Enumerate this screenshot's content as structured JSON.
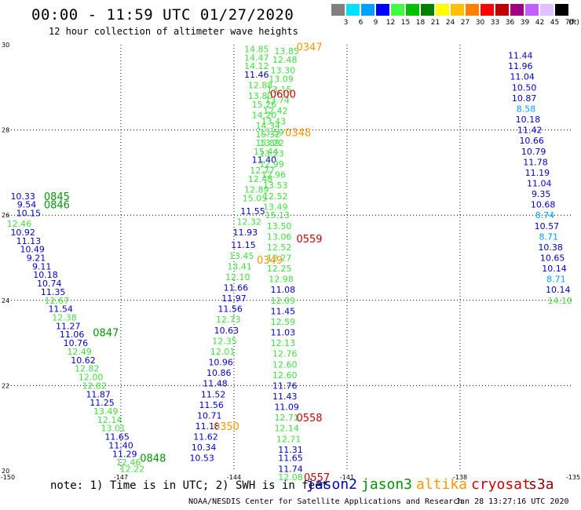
{
  "title": "00:00 - 11:59 UTC 01/27/2020",
  "subtitle": "12 hour collection of altimeter wave heights",
  "color_scale": {
    "unit_label": "(ft)",
    "labels": [
      "3",
      "6",
      "9",
      "12",
      "15",
      "18",
      "21",
      "24",
      "27",
      "30",
      "33",
      "36",
      "39",
      "42",
      "45",
      "70"
    ],
    "colors": [
      "#808080",
      "#00e0ff",
      "#00a0ff",
      "#0000ff",
      "#40ff40",
      "#00c000",
      "#008000",
      "#ffff00",
      "#ffc000",
      "#ff8000",
      "#ff0000",
      "#c00000",
      "#a00080",
      "#c060ff",
      "#e0c0ff",
      "#000000"
    ]
  },
  "note": "note: 1) Time is in UTC; 2) SWH is in feet",
  "legend": [
    {
      "name": "jason2",
      "color": "#0000c8"
    },
    {
      "name": "jason3",
      "color": "#009600"
    },
    {
      "name": "altika",
      "color": "#ff9600"
    },
    {
      "name": "cryosat",
      "color": "#c80000"
    },
    {
      "name": "s3a",
      "color": "#960000"
    }
  ],
  "credit": "NOAA/NESDIS Center for Satellite Applications and Research",
  "timestamp": "Jan 28 13:27:16 UTC 2020",
  "chart_data": {
    "type": "scatter",
    "title": "12 hour collection of altimeter wave heights",
    "xlim": [
      -150,
      -135
    ],
    "ylim": [
      20,
      30
    ],
    "xticks": [
      -150,
      -147,
      -144,
      -141,
      -138,
      -135
    ],
    "yticks": [
      20,
      22,
      24,
      26,
      28,
      30
    ],
    "grid": true,
    "color_by": "wave height (ft)",
    "series": [
      {
        "name": "jason3",
        "track": "w",
        "points": [
          {
            "x": -149.7,
            "y": 25.8,
            "v": "12.46"
          },
          {
            "x": -149.6,
            "y": 25.6,
            "v": "10.92"
          },
          {
            "x": -149.45,
            "y": 25.4,
            "v": "11.13"
          },
          {
            "x": -149.35,
            "y": 25.2,
            "v": "10.49"
          },
          {
            "x": -149.25,
            "y": 25.0,
            "v": "9.21"
          },
          {
            "x": -149.1,
            "y": 24.8,
            "v": "9.11"
          },
          {
            "x": -149.0,
            "y": 24.6,
            "v": "10.18"
          },
          {
            "x": -148.9,
            "y": 24.4,
            "v": "10.74"
          },
          {
            "x": -148.8,
            "y": 24.2,
            "v": "11.35"
          },
          {
            "x": -148.7,
            "y": 24.0,
            "v": "12.67"
          },
          {
            "x": -148.6,
            "y": 23.8,
            "v": "11.54"
          },
          {
            "x": -148.5,
            "y": 23.6,
            "v": "12.38"
          },
          {
            "x": -148.4,
            "y": 23.4,
            "v": "11.27"
          },
          {
            "x": -148.3,
            "y": 23.2,
            "v": "11.06"
          },
          {
            "x": -148.2,
            "y": 23.0,
            "v": "10.76"
          },
          {
            "x": -148.1,
            "y": 22.8,
            "v": "12.49"
          },
          {
            "x": -148.0,
            "y": 22.6,
            "v": "10.62"
          },
          {
            "x": -147.9,
            "y": 22.4,
            "v": "12.82"
          },
          {
            "x": -147.8,
            "y": 22.2,
            "v": "12.00"
          },
          {
            "x": -147.7,
            "y": 22.0,
            "v": "12.82"
          },
          {
            "x": -147.6,
            "y": 21.8,
            "v": "11.87"
          },
          {
            "x": -147.5,
            "y": 21.6,
            "v": "11.25"
          },
          {
            "x": -147.4,
            "y": 21.4,
            "v": "13.49"
          },
          {
            "x": -147.3,
            "y": 21.2,
            "v": "12.14"
          },
          {
            "x": -147.2,
            "y": 21.0,
            "v": "13.01"
          },
          {
            "x": -147.1,
            "y": 20.8,
            "v": "11.65"
          },
          {
            "x": -147.0,
            "y": 20.6,
            "v": "11.40"
          },
          {
            "x": -146.9,
            "y": 20.4,
            "v": "11.29"
          },
          {
            "x": -146.8,
            "y": 20.2,
            "v": "12.46"
          },
          {
            "x": -146.7,
            "y": 20.05,
            "v": "12.22"
          }
        ]
      },
      {
        "name": "jason2",
        "track": "c",
        "points": [
          {
            "x": -143.4,
            "y": 29.9,
            "v": "14.85"
          },
          {
            "x": -143.4,
            "y": 29.7,
            "v": "14.47"
          },
          {
            "x": -143.4,
            "y": 29.5,
            "v": "14.12"
          },
          {
            "x": -143.4,
            "y": 29.3,
            "v": "11.46"
          },
          {
            "x": -143.3,
            "y": 29.05,
            "v": "12.88"
          },
          {
            "x": -143.3,
            "y": 28.8,
            "v": "13.80"
          },
          {
            "x": -143.2,
            "y": 28.6,
            "v": "15.26"
          },
          {
            "x": -143.2,
            "y": 28.35,
            "v": "14.20"
          },
          {
            "x": -143.1,
            "y": 28.1,
            "v": "14.34"
          },
          {
            "x": -143.1,
            "y": 27.9,
            "v": "15.32"
          },
          {
            "x": -143.1,
            "y": 27.7,
            "v": "15.89"
          },
          {
            "x": -143.15,
            "y": 27.5,
            "v": "15.44"
          },
          {
            "x": -143.2,
            "y": 27.3,
            "v": "11.40"
          },
          {
            "x": -143.25,
            "y": 27.05,
            "v": "12.77"
          },
          {
            "x": -143.3,
            "y": 26.85,
            "v": "12.48"
          },
          {
            "x": -143.4,
            "y": 26.6,
            "v": "12.89"
          },
          {
            "x": -143.45,
            "y": 26.4,
            "v": "15.05"
          },
          {
            "x": -143.5,
            "y": 26.1,
            "v": "11.55"
          },
          {
            "x": -143.6,
            "y": 25.85,
            "v": "12.32"
          },
          {
            "x": -143.7,
            "y": 25.6,
            "v": "11.93"
          },
          {
            "x": -143.75,
            "y": 25.3,
            "v": "11.15"
          },
          {
            "x": -143.8,
            "y": 25.05,
            "v": "13.45"
          },
          {
            "x": -143.85,
            "y": 24.8,
            "v": "13.41"
          },
          {
            "x": -143.9,
            "y": 24.55,
            "v": "12.10"
          },
          {
            "x": -143.95,
            "y": 24.3,
            "v": "11.66"
          },
          {
            "x": -144.0,
            "y": 24.05,
            "v": "11.97"
          },
          {
            "x": -144.1,
            "y": 23.8,
            "v": "11.56"
          },
          {
            "x": -144.15,
            "y": 23.55,
            "v": "12.73"
          },
          {
            "x": -144.2,
            "y": 23.3,
            "v": "10.63"
          },
          {
            "x": -144.25,
            "y": 23.05,
            "v": "12.35"
          },
          {
            "x": -144.3,
            "y": 22.8,
            "v": "12.01"
          },
          {
            "x": -144.35,
            "y": 22.55,
            "v": "10.96"
          },
          {
            "x": -144.4,
            "y": 22.3,
            "v": "10.86"
          },
          {
            "x": -144.5,
            "y": 22.05,
            "v": "11.48"
          },
          {
            "x": -144.55,
            "y": 21.8,
            "v": "11.52"
          },
          {
            "x": -144.6,
            "y": 21.55,
            "v": "11.56"
          },
          {
            "x": -144.65,
            "y": 21.3,
            "v": "10.71"
          },
          {
            "x": -144.7,
            "y": 21.05,
            "v": "11.18"
          },
          {
            "x": -144.75,
            "y": 20.8,
            "v": "11.62"
          },
          {
            "x": -144.8,
            "y": 20.55,
            "v": "10.34"
          },
          {
            "x": -144.85,
            "y": 20.3,
            "v": "10.53"
          }
        ]
      },
      {
        "name": "jason3",
        "track": "c2",
        "points": [
          {
            "x": -142.6,
            "y": 29.85,
            "v": "13.85"
          },
          {
            "x": -142.65,
            "y": 29.65,
            "v": "12.48"
          },
          {
            "x": -142.7,
            "y": 29.4,
            "v": "13.30"
          },
          {
            "x": -142.75,
            "y": 29.2,
            "v": "13.09"
          },
          {
            "x": -142.8,
            "y": 28.95,
            "v": "13.15"
          },
          {
            "x": -142.85,
            "y": 28.7,
            "v": "13.74"
          },
          {
            "x": -142.9,
            "y": 28.45,
            "v": "12.42"
          },
          {
            "x": -142.95,
            "y": 28.2,
            "v": "13.43"
          },
          {
            "x": -143.0,
            "y": 27.95,
            "v": "13.59"
          },
          {
            "x": -143.0,
            "y": 27.7,
            "v": "13.22"
          },
          {
            "x": -143.0,
            "y": 27.45,
            "v": "13.23"
          },
          {
            "x": -143.0,
            "y": 27.2,
            "v": "12.99"
          },
          {
            "x": -142.95,
            "y": 26.95,
            "v": "12.96"
          },
          {
            "x": -142.9,
            "y": 26.7,
            "v": "13.53"
          },
          {
            "x": -142.9,
            "y": 26.45,
            "v": "12.52"
          },
          {
            "x": -142.9,
            "y": 26.2,
            "v": "13.49"
          },
          {
            "x": -142.85,
            "y": 26.0,
            "v": "15.13"
          },
          {
            "x": -142.8,
            "y": 25.75,
            "v": "13.50"
          },
          {
            "x": -142.8,
            "y": 25.5,
            "v": "13.06"
          },
          {
            "x": -142.8,
            "y": 25.25,
            "v": "12.52"
          },
          {
            "x": -142.8,
            "y": 25.0,
            "v": "12.27"
          },
          {
            "x": -142.8,
            "y": 24.75,
            "v": "12.25"
          },
          {
            "x": -142.75,
            "y": 24.5,
            "v": "12.98"
          },
          {
            "x": -142.7,
            "y": 24.25,
            "v": "11.08"
          },
          {
            "x": -142.7,
            "y": 24.0,
            "v": "12.09"
          },
          {
            "x": -142.7,
            "y": 23.75,
            "v": "11.45"
          },
          {
            "x": -142.7,
            "y": 23.5,
            "v": "12.59"
          },
          {
            "x": -142.7,
            "y": 23.25,
            "v": "11.03"
          },
          {
            "x": -142.7,
            "y": 23.0,
            "v": "12.13"
          },
          {
            "x": -142.65,
            "y": 22.75,
            "v": "12.76"
          },
          {
            "x": -142.65,
            "y": 22.5,
            "v": "12.60"
          },
          {
            "x": -142.65,
            "y": 22.25,
            "v": "12.60"
          },
          {
            "x": -142.65,
            "y": 22.0,
            "v": "11.76"
          },
          {
            "x": -142.65,
            "y": 21.75,
            "v": "11.43"
          },
          {
            "x": -142.6,
            "y": 21.5,
            "v": "11.09"
          },
          {
            "x": -142.6,
            "y": 21.25,
            "v": "12.71"
          },
          {
            "x": -142.6,
            "y": 21.0,
            "v": "12.14"
          },
          {
            "x": -142.55,
            "y": 20.75,
            "v": "12.71"
          },
          {
            "x": -142.5,
            "y": 20.5,
            "v": "11.31"
          },
          {
            "x": -142.5,
            "y": 20.3,
            "v": "11.65"
          },
          {
            "x": -142.5,
            "y": 20.05,
            "v": "11.74"
          },
          {
            "x": -142.5,
            "y": 19.85,
            "v": "12.08"
          }
        ]
      },
      {
        "name": "jason2",
        "track": "e",
        "points": [
          {
            "x": -136.4,
            "y": 29.75,
            "v": "11.44"
          },
          {
            "x": -136.4,
            "y": 29.5,
            "v": "11.96"
          },
          {
            "x": -136.35,
            "y": 29.25,
            "v": "11.04"
          },
          {
            "x": -136.3,
            "y": 29.0,
            "v": "10.50"
          },
          {
            "x": -136.3,
            "y": 28.75,
            "v": "10.87"
          },
          {
            "x": -136.25,
            "y": 28.5,
            "v": "8.58"
          },
          {
            "x": -136.2,
            "y": 28.25,
            "v": "10.18"
          },
          {
            "x": -136.15,
            "y": 28.0,
            "v": "11.42"
          },
          {
            "x": -136.1,
            "y": 27.75,
            "v": "10.66"
          },
          {
            "x": -136.05,
            "y": 27.5,
            "v": "10.79"
          },
          {
            "x": -136.0,
            "y": 27.25,
            "v": "11.78"
          },
          {
            "x": -135.95,
            "y": 27.0,
            "v": "11.19"
          },
          {
            "x": -135.9,
            "y": 26.75,
            "v": "11.04"
          },
          {
            "x": -135.85,
            "y": 26.5,
            "v": "9.35"
          },
          {
            "x": -135.8,
            "y": 26.25,
            "v": "10.68"
          },
          {
            "x": -135.75,
            "y": 26.0,
            "v": "8.74"
          },
          {
            "x": -135.7,
            "y": 25.75,
            "v": "10.57"
          },
          {
            "x": -135.65,
            "y": 25.5,
            "v": "8.71"
          },
          {
            "x": -135.6,
            "y": 25.25,
            "v": "10.38"
          },
          {
            "x": -135.55,
            "y": 25.0,
            "v": "10.65"
          },
          {
            "x": -135.5,
            "y": 24.75,
            "v": "10.14"
          },
          {
            "x": -135.45,
            "y": 24.5,
            "v": "8.71"
          },
          {
            "x": -135.4,
            "y": 24.25,
            "v": "10.14"
          },
          {
            "x": -135.35,
            "y": 24.0,
            "v": "14.10"
          }
        ]
      },
      {
        "name": "jason2",
        "track": "w-top",
        "points": [
          {
            "x": -149.6,
            "y": 26.45,
            "v": "10.33"
          },
          {
            "x": -149.5,
            "y": 26.25,
            "v": "9.54"
          },
          {
            "x": -149.45,
            "y": 26.05,
            "v": "10.15"
          }
        ]
      }
    ],
    "time_labels": [
      {
        "x": -148.7,
        "y": 26.45,
        "t": "0845",
        "sat": "jason3"
      },
      {
        "x": -148.7,
        "y": 26.25,
        "t": "0846",
        "sat": "jason3"
      },
      {
        "x": -147.4,
        "y": 23.25,
        "t": "0847",
        "sat": "jason3"
      },
      {
        "x": -146.15,
        "y": 20.3,
        "t": "0848",
        "sat": "jason3"
      },
      {
        "x": -142.0,
        "y": 29.95,
        "t": "0347",
        "sat": "altika"
      },
      {
        "x": -142.7,
        "y": 28.85,
        "t": "0600",
        "sat": "cryosat"
      },
      {
        "x": -142.3,
        "y": 27.95,
        "t": "0348",
        "sat": "altika"
      },
      {
        "x": -142.0,
        "y": 25.45,
        "t": "0559",
        "sat": "cryosat"
      },
      {
        "x": -143.05,
        "y": 24.95,
        "t": "0349",
        "sat": "altika"
      },
      {
        "x": -142.0,
        "y": 21.25,
        "t": "0558",
        "sat": "cryosat"
      },
      {
        "x": -144.2,
        "y": 21.05,
        "t": "0350",
        "sat": "altika"
      },
      {
        "x": -141.8,
        "y": 19.85,
        "t": "0557",
        "sat": "cryosat"
      }
    ]
  }
}
